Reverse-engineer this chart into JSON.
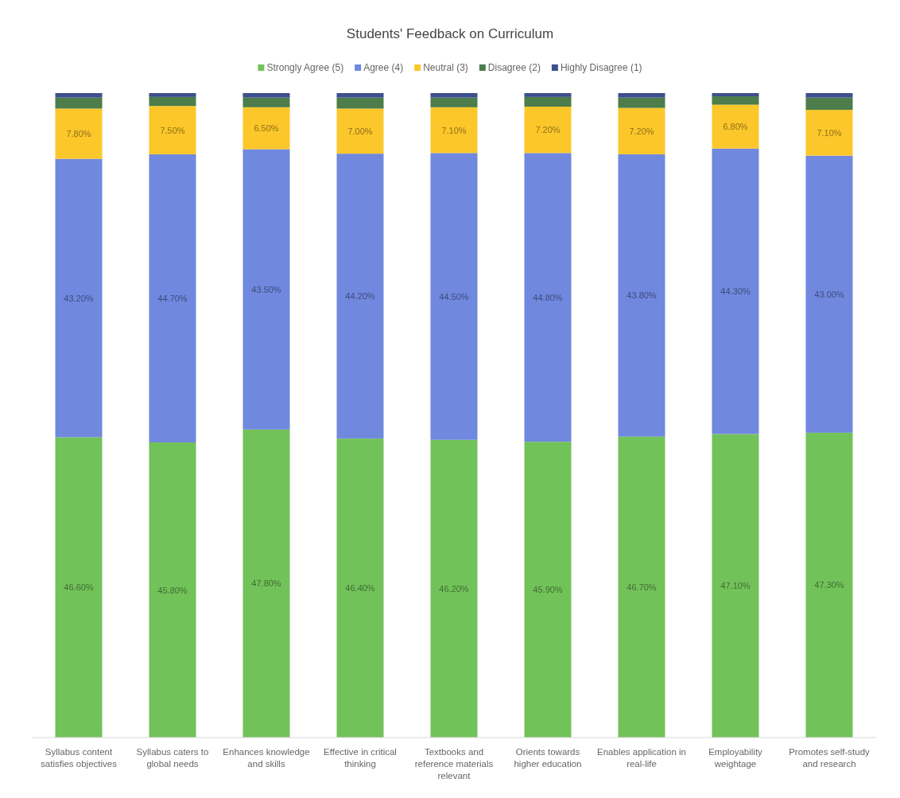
{
  "chart_data": {
    "type": "bar",
    "title": "Students' Feedback on Curriculum",
    "stacked": true,
    "legend": "top",
    "grid": false,
    "categories": [
      "Syllabus content satisfies objectives",
      "Syllabus caters to global needs",
      "Enhances knowledge and skills",
      "Effective in critical thinking",
      "Textbooks and reference materials relevant",
      "Orients towards higher education",
      "Enables application in real-life",
      "Employability weightage",
      "Promotes self-study and research"
    ],
    "series": [
      {
        "name": "Strongly Agree (5)",
        "color": "#72c25a",
        "values": [
          46.6,
          45.8,
          47.8,
          46.4,
          46.2,
          45.9,
          46.7,
          47.1,
          47.3
        ],
        "value_labels": [
          "46.60%",
          "45.80%",
          "47.80%",
          "46.40%",
          "46.20%",
          "45.90%",
          "46.70%",
          "47.10%",
          "47.30%"
        ]
      },
      {
        "name": "Agree (4)",
        "color": "#7088de",
        "values": [
          43.2,
          44.7,
          43.5,
          44.2,
          44.5,
          44.8,
          43.8,
          44.3,
          43.0
        ],
        "value_labels": [
          "43.20%",
          "44.70%",
          "43.50%",
          "44.20%",
          "44.50%",
          "44.80%",
          "43.80%",
          "44.30%",
          "43.00%"
        ]
      },
      {
        "name": "Neutral (3)",
        "color": "#fcc72a",
        "values": [
          7.8,
          7.5,
          6.5,
          7.0,
          7.1,
          7.2,
          7.2,
          6.8,
          7.1
        ],
        "value_labels": [
          "7.80%",
          "7.50%",
          "6.50%",
          "7.00%",
          "7.10%",
          "7.20%",
          "7.20%",
          "6.80%",
          "7.10%"
        ]
      },
      {
        "name": "Disagree (2)",
        "color": "#4c7d4a",
        "values": [
          1.7,
          1.4,
          1.5,
          1.7,
          1.5,
          1.5,
          1.6,
          1.3,
          1.9
        ]
      },
      {
        "name": "Highly Disagree (1)",
        "color": "#3d4f8c",
        "values": [
          0.7,
          0.6,
          0.7,
          0.7,
          0.7,
          0.6,
          0.7,
          0.5,
          0.7
        ]
      }
    ]
  }
}
